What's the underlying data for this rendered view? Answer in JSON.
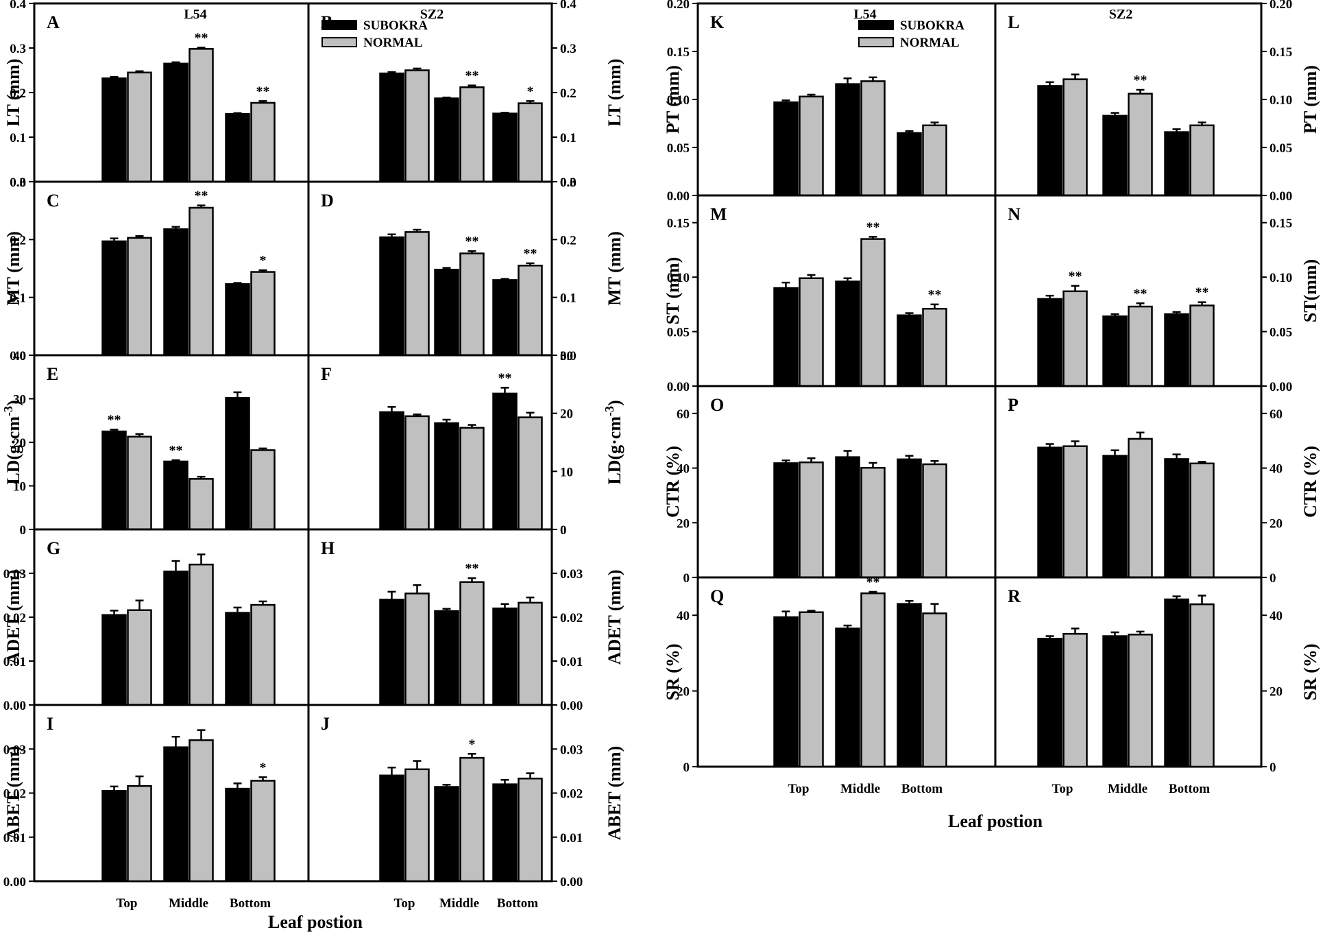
{
  "figure": {
    "left_column": {
      "xlabel": "Leaf postion",
      "categories": [
        "Top",
        "Middle",
        "Bottom"
      ]
    },
    "right_column": {
      "xlabel": "Leaf postion",
      "categories": [
        "Top",
        "Middle",
        "Bottom"
      ]
    }
  },
  "legend": {
    "subokra": "SUBOKRA",
    "normal": "NORMAL"
  },
  "colors": {
    "subokra": "#000000",
    "normal": "#c0c0c0"
  },
  "chart_data": [
    {
      "id": "A",
      "label": "A",
      "type": "bar",
      "title": "L54",
      "ylabel": "LT (mm)",
      "ylim": [
        0,
        0.4
      ],
      "yticks": [
        "0.0",
        "0.1",
        "0.2",
        "0.3",
        "0.4"
      ],
      "tick_side": "left",
      "label_side": "left",
      "categories": [
        "Top",
        "Middle",
        "Bottom"
      ],
      "series": [
        {
          "name": "SUBOKRA",
          "values": [
            0.232,
            0.265,
            0.152
          ],
          "errors": [
            0.003,
            0.003,
            0.002
          ]
        },
        {
          "name": "NORMAL",
          "values": [
            0.245,
            0.298,
            0.177
          ],
          "errors": [
            0.003,
            0.003,
            0.004
          ]
        }
      ],
      "annotations": [
        "",
        "**",
        "**"
      ]
    },
    {
      "id": "B",
      "label": "B",
      "type": "bar",
      "title": "SZ2",
      "ylabel": "LT (mm)",
      "ylim": [
        0,
        0.4
      ],
      "yticks": [
        "0.0",
        "0.1",
        "0.2",
        "0.3",
        "0.4"
      ],
      "tick_side": "right",
      "label_side": "right",
      "categories": [
        "Top",
        "Middle",
        "Bottom"
      ],
      "series": [
        {
          "name": "SUBOKRA",
          "values": [
            0.243,
            0.187,
            0.153
          ],
          "errors": [
            0.003,
            0.002,
            0.002
          ]
        },
        {
          "name": "NORMAL",
          "values": [
            0.25,
            0.212,
            0.176
          ],
          "errors": [
            0.004,
            0.004,
            0.005
          ]
        }
      ],
      "annotations": [
        "",
        "**",
        "*"
      ],
      "legend": "top-left"
    },
    {
      "id": "C",
      "label": "C",
      "type": "bar",
      "ylabel": "MT (mm)",
      "ylim": [
        0,
        0.3
      ],
      "yticks": [
        "0.0",
        "0.1",
        "0.2",
        "0.3"
      ],
      "tick_side": "left",
      "label_side": "left",
      "categories": [
        "Top",
        "Middle",
        "Bottom"
      ],
      "series": [
        {
          "name": "SUBOKRA",
          "values": [
            0.197,
            0.218,
            0.123
          ],
          "errors": [
            0.005,
            0.004,
            0.002
          ]
        },
        {
          "name": "NORMAL",
          "values": [
            0.203,
            0.255,
            0.144
          ],
          "errors": [
            0.003,
            0.004,
            0.003
          ]
        }
      ],
      "annotations": [
        "",
        "**",
        "*"
      ]
    },
    {
      "id": "D",
      "label": "D",
      "type": "bar",
      "ylabel": "MT (mm)",
      "ylim": [
        0,
        0.3
      ],
      "yticks": [
        "0.0",
        "0.1",
        "0.2",
        "0.3"
      ],
      "tick_side": "right",
      "label_side": "right",
      "categories": [
        "Top",
        "Middle",
        "Bottom"
      ],
      "series": [
        {
          "name": "SUBOKRA",
          "values": [
            0.204,
            0.148,
            0.13
          ],
          "errors": [
            0.005,
            0.003,
            0.002
          ]
        },
        {
          "name": "NORMAL",
          "values": [
            0.213,
            0.176,
            0.155
          ],
          "errors": [
            0.004,
            0.004,
            0.004
          ]
        }
      ],
      "annotations": [
        "",
        "**",
        "**"
      ]
    },
    {
      "id": "E",
      "label": "E",
      "type": "bar",
      "ylabel": "LD(g·cm",
      "ylabel_sup": "-3",
      "ylabel_tail": ")",
      "ylim": [
        0,
        40
      ],
      "yticks": [
        "0",
        "10",
        "20",
        "30",
        "40"
      ],
      "tick_side": "left",
      "label_side": "left",
      "categories": [
        "Top",
        "Middle",
        "Bottom"
      ],
      "series": [
        {
          "name": "SUBOKRA",
          "values": [
            22.5,
            15.6,
            30.2
          ],
          "errors": [
            0.4,
            0.3,
            1.3
          ]
        },
        {
          "name": "NORMAL",
          "values": [
            21.3,
            11.6,
            18.2
          ],
          "errors": [
            0.6,
            0.5,
            0.4
          ]
        }
      ],
      "annotations": [
        "**",
        "**",
        ""
      ],
      "annotation_series": 0
    },
    {
      "id": "F",
      "label": "F",
      "type": "bar",
      "ylabel": "LD(g·cm",
      "ylabel_sup": "-3",
      "ylabel_tail": ")",
      "ylim": [
        0,
        30
      ],
      "yticks": [
        "0",
        "10",
        "20",
        "30"
      ],
      "tick_side": "right",
      "label_side": "right",
      "categories": [
        "Top",
        "Middle",
        "Bottom"
      ],
      "series": [
        {
          "name": "SUBOKRA",
          "values": [
            20.2,
            18.3,
            23.4
          ],
          "errors": [
            0.9,
            0.6,
            1.0
          ]
        },
        {
          "name": "NORMAL",
          "values": [
            19.5,
            17.5,
            19.3
          ],
          "errors": [
            0.3,
            0.5,
            0.8
          ]
        }
      ],
      "annotations": [
        "",
        "",
        "**"
      ],
      "annotation_series": 0
    },
    {
      "id": "G",
      "label": "G",
      "type": "bar",
      "ylabel": "ADET (mm)",
      "ylim": [
        0,
        0.04
      ],
      "yticks": [
        "0.00",
        "0.01",
        "0.02",
        "0.03"
      ],
      "tick_side": "left",
      "label_side": "left",
      "categories": [
        "Top",
        "Middle",
        "Bottom"
      ],
      "series": [
        {
          "name": "SUBOKRA",
          "values": [
            0.0205,
            0.0304,
            0.021
          ],
          "errors": [
            0.001,
            0.0024,
            0.0012
          ]
        },
        {
          "name": "NORMAL",
          "values": [
            0.0216,
            0.032,
            0.0228
          ],
          "errors": [
            0.0022,
            0.0023,
            0.0008
          ]
        }
      ],
      "annotations": [
        "",
        "",
        ""
      ]
    },
    {
      "id": "H",
      "label": "H",
      "type": "bar",
      "ylabel": "ADET (mm)",
      "ylim": [
        0,
        0.04
      ],
      "yticks": [
        "0.00",
        "0.01",
        "0.02",
        "0.03"
      ],
      "tick_side": "right",
      "label_side": "right",
      "categories": [
        "Top",
        "Middle",
        "Bottom"
      ],
      "series": [
        {
          "name": "SUBOKRA",
          "values": [
            0.024,
            0.0214,
            0.022
          ],
          "errors": [
            0.0018,
            0.0005,
            0.001
          ]
        },
        {
          "name": "NORMAL",
          "values": [
            0.0254,
            0.028,
            0.0233
          ],
          "errors": [
            0.0019,
            0.0009,
            0.0012
          ]
        }
      ],
      "annotations": [
        "",
        "**",
        ""
      ]
    },
    {
      "id": "I",
      "label": "I",
      "type": "bar",
      "ylabel": "ABET (mm)",
      "ylim": [
        0,
        0.04
      ],
      "yticks": [
        "0.00",
        "0.01",
        "0.02",
        "0.03"
      ],
      "tick_side": "left",
      "label_side": "left",
      "categories": [
        "Top",
        "Middle",
        "Bottom"
      ],
      "series": [
        {
          "name": "SUBOKRA",
          "values": [
            0.0205,
            0.0304,
            0.021
          ],
          "errors": [
            0.001,
            0.0024,
            0.0012
          ]
        },
        {
          "name": "NORMAL",
          "values": [
            0.0216,
            0.032,
            0.0228
          ],
          "errors": [
            0.0022,
            0.0023,
            0.0008
          ]
        }
      ],
      "annotations": [
        "",
        "",
        "*"
      ],
      "x_tick_labels": true
    },
    {
      "id": "J",
      "label": "J",
      "type": "bar",
      "ylabel": "ABET (mm)",
      "ylim": [
        0,
        0.04
      ],
      "yticks": [
        "0.00",
        "0.01",
        "0.02",
        "0.03"
      ],
      "tick_side": "right",
      "label_side": "right",
      "categories": [
        "Top",
        "Middle",
        "Bottom"
      ],
      "series": [
        {
          "name": "SUBOKRA",
          "values": [
            0.024,
            0.0214,
            0.022
          ],
          "errors": [
            0.0018,
            0.0005,
            0.001
          ]
        },
        {
          "name": "NORMAL",
          "values": [
            0.0254,
            0.028,
            0.0233
          ],
          "errors": [
            0.0019,
            0.0009,
            0.0012
          ]
        }
      ],
      "annotations": [
        "",
        "*",
        ""
      ],
      "x_tick_labels": true
    },
    {
      "id": "K",
      "label": "K",
      "type": "bar",
      "title": "L54",
      "ylabel": "PT (mm)",
      "ylim": [
        0,
        0.2
      ],
      "yticks": [
        "0.00",
        "0.05",
        "0.10",
        "0.15",
        "0.20"
      ],
      "tick_side": "left",
      "label_side": "left",
      "categories": [
        "Top",
        "Middle",
        "Bottom"
      ],
      "series": [
        {
          "name": "SUBOKRA",
          "values": [
            0.097,
            0.116,
            0.065
          ],
          "errors": [
            0.002,
            0.006,
            0.002
          ]
        },
        {
          "name": "NORMAL",
          "values": [
            0.103,
            0.119,
            0.073
          ],
          "errors": [
            0.002,
            0.004,
            0.003
          ]
        }
      ],
      "annotations": [
        "",
        "",
        ""
      ],
      "legend": "top-right"
    },
    {
      "id": "L",
      "label": "L",
      "type": "bar",
      "title": "SZ2",
      "ylabel": "PT (mm)",
      "ylim": [
        0,
        0.2
      ],
      "yticks": [
        "0.00",
        "0.05",
        "0.10",
        "0.15",
        "0.20"
      ],
      "tick_side": "right",
      "label_side": "right",
      "categories": [
        "Top",
        "Middle",
        "Bottom"
      ],
      "series": [
        {
          "name": "SUBOKRA",
          "values": [
            0.114,
            0.083,
            0.066
          ],
          "errors": [
            0.004,
            0.003,
            0.003
          ]
        },
        {
          "name": "NORMAL",
          "values": [
            0.121,
            0.106,
            0.073
          ],
          "errors": [
            0.005,
            0.004,
            0.003
          ]
        }
      ],
      "annotations": [
        "",
        "**",
        ""
      ]
    },
    {
      "id": "M",
      "label": "M",
      "type": "bar",
      "ylabel": "ST (mm)",
      "ylim": [
        0,
        0.175
      ],
      "yticks": [
        "0.00",
        "0.05",
        "0.10",
        "0.15"
      ],
      "tick_side": "left",
      "label_side": "left",
      "categories": [
        "Top",
        "Middle",
        "Bottom"
      ],
      "series": [
        {
          "name": "SUBOKRA",
          "values": [
            0.09,
            0.096,
            0.065
          ],
          "errors": [
            0.005,
            0.003,
            0.002
          ]
        },
        {
          "name": "NORMAL",
          "values": [
            0.099,
            0.135,
            0.071
          ],
          "errors": [
            0.003,
            0.002,
            0.004
          ]
        }
      ],
      "annotations": [
        "",
        "**",
        "**"
      ]
    },
    {
      "id": "N",
      "label": "N",
      "type": "bar",
      "ylabel": "ST(mm)",
      "ylim": [
        0,
        0.175
      ],
      "yticks": [
        "0.00",
        "0.05",
        "0.10",
        "0.15"
      ],
      "tick_side": "right",
      "label_side": "right",
      "categories": [
        "Top",
        "Middle",
        "Bottom"
      ],
      "series": [
        {
          "name": "SUBOKRA",
          "values": [
            0.08,
            0.064,
            0.066
          ],
          "errors": [
            0.003,
            0.002,
            0.002
          ]
        },
        {
          "name": "NORMAL",
          "values": [
            0.087,
            0.073,
            0.074
          ],
          "errors": [
            0.005,
            0.003,
            0.003
          ]
        }
      ],
      "annotations": [
        "**",
        "**",
        "**"
      ]
    },
    {
      "id": "O",
      "label": "O",
      "type": "bar",
      "ylabel": "CTR (%)",
      "ylim": [
        0,
        70
      ],
      "yticks": [
        "0",
        "20",
        "40",
        "60"
      ],
      "tick_side": "left",
      "label_side": "left",
      "categories": [
        "Top",
        "Middle",
        "Bottom"
      ],
      "series": [
        {
          "name": "SUBOKRA",
          "values": [
            41.8,
            44.0,
            43.2
          ],
          "errors": [
            1.0,
            2.3,
            1.3
          ]
        },
        {
          "name": "NORMAL",
          "values": [
            42.1,
            40.1,
            41.4
          ],
          "errors": [
            1.5,
            1.8,
            1.2
          ]
        }
      ],
      "annotations": [
        "",
        "",
        ""
      ]
    },
    {
      "id": "P",
      "label": "P",
      "type": "bar",
      "ylabel": "CTR (%)",
      "ylim": [
        0,
        70
      ],
      "yticks": [
        "0",
        "20",
        "40",
        "60"
      ],
      "tick_side": "right",
      "label_side": "right",
      "categories": [
        "Top",
        "Middle",
        "Bottom"
      ],
      "series": [
        {
          "name": "SUBOKRA",
          "values": [
            47.5,
            44.5,
            43.3
          ],
          "errors": [
            1.3,
            2.0,
            1.7
          ]
        },
        {
          "name": "NORMAL",
          "values": [
            48.0,
            50.7,
            41.7
          ],
          "errors": [
            1.8,
            2.3,
            0.6
          ]
        }
      ],
      "annotations": [
        "",
        "",
        ""
      ]
    },
    {
      "id": "Q",
      "label": "Q",
      "type": "bar",
      "ylabel": "SR (%)",
      "ylim": [
        0,
        50
      ],
      "yticks": [
        "0",
        "20",
        "40"
      ],
      "tick_side": "left",
      "label_side": "left",
      "categories": [
        "Top",
        "Middle",
        "Bottom"
      ],
      "series": [
        {
          "name": "SUBOKRA",
          "values": [
            39.5,
            36.5,
            43.0
          ],
          "errors": [
            1.5,
            0.8,
            0.8
          ]
        },
        {
          "name": "NORMAL",
          "values": [
            40.8,
            45.8,
            40.5
          ],
          "errors": [
            0.4,
            0.4,
            2.5
          ]
        }
      ],
      "annotations": [
        "",
        "**",
        ""
      ],
      "x_tick_labels": true
    },
    {
      "id": "R",
      "label": "R",
      "type": "bar",
      "ylabel": "SR (%)",
      "ylim": [
        0,
        50
      ],
      "yticks": [
        "0",
        "20",
        "40"
      ],
      "tick_side": "right",
      "label_side": "right",
      "categories": [
        "Top",
        "Middle",
        "Bottom"
      ],
      "series": [
        {
          "name": "SUBOKRA",
          "values": [
            33.8,
            34.5,
            44.2
          ],
          "errors": [
            0.7,
            1.0,
            0.8
          ]
        },
        {
          "name": "NORMAL",
          "values": [
            35.1,
            34.9,
            42.9
          ],
          "errors": [
            1.4,
            0.8,
            2.3
          ]
        }
      ],
      "annotations": [
        "",
        "",
        ""
      ],
      "x_tick_labels": true
    }
  ]
}
